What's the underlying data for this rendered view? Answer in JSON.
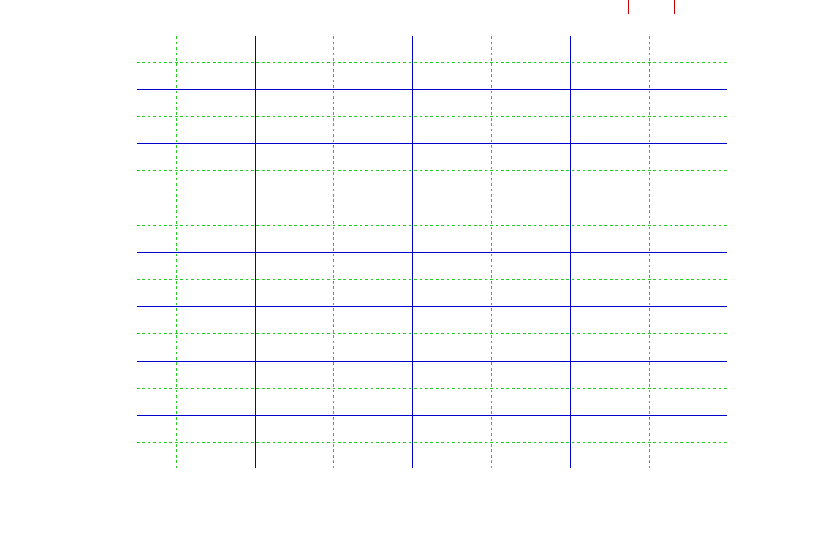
{
  "chart_data": {
    "type": "line",
    "title": "",
    "xlabel": "",
    "ylabel": "",
    "series": [],
    "grid": {
      "major": true,
      "minor": true,
      "major_color": "#0000cc",
      "minor_color": "#22cc22",
      "major_style": "solid",
      "minor_style": "dashed"
    },
    "legend": {
      "placement": "top-right",
      "entries": []
    }
  }
}
